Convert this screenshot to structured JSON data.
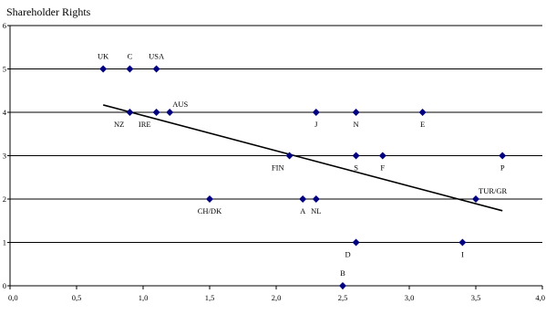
{
  "chart_data": {
    "type": "scatter",
    "title": "Shareholder Rights",
    "xlabel": "",
    "ylabel": "",
    "xlim": [
      0.0,
      4.0
    ],
    "ylim": [
      0,
      6
    ],
    "x_ticks": [
      0.0,
      0.5,
      1.0,
      1.5,
      2.0,
      2.5,
      3.0,
      3.5,
      4.0
    ],
    "x_tick_labels": [
      "0,0",
      "0,5",
      "1,0",
      "1,5",
      "2,0",
      "2,5",
      "3,0",
      "3,5",
      "4,0"
    ],
    "y_ticks": [
      0,
      1,
      2,
      3,
      4,
      5,
      6
    ],
    "y_tick_labels": [
      "0",
      "1",
      "2",
      "3",
      "4",
      "5",
      "6"
    ],
    "grid": "horizontal",
    "legend": "none",
    "marker_color": "#000080",
    "line_color": "#000000",
    "points": [
      {
        "label": "UK",
        "x": 0.7,
        "y": 5,
        "label_pos": "above"
      },
      {
        "label": "C",
        "x": 0.9,
        "y": 5,
        "label_pos": "above"
      },
      {
        "label": "USA",
        "x": 1.1,
        "y": 5,
        "label_pos": "above"
      },
      {
        "label": "NZ",
        "x": 0.9,
        "y": 4,
        "label_pos": "below-left"
      },
      {
        "label": "IRE",
        "x": 1.1,
        "y": 4,
        "label_pos": "below-left"
      },
      {
        "label": "AUS",
        "x": 1.2,
        "y": 4,
        "label_pos": "above-right"
      },
      {
        "label": "J",
        "x": 2.3,
        "y": 4,
        "label_pos": "below"
      },
      {
        "label": "N",
        "x": 2.6,
        "y": 4,
        "label_pos": "below"
      },
      {
        "label": "E",
        "x": 3.1,
        "y": 4,
        "label_pos": "below"
      },
      {
        "label": "FIN",
        "x": 2.1,
        "y": 3,
        "label_pos": "below-left"
      },
      {
        "label": "S",
        "x": 2.6,
        "y": 3,
        "label_pos": "below"
      },
      {
        "label": "F",
        "x": 2.8,
        "y": 3,
        "label_pos": "below"
      },
      {
        "label": "P",
        "x": 3.7,
        "y": 3,
        "label_pos": "below"
      },
      {
        "label": "CH/DK",
        "x": 1.5,
        "y": 2,
        "label_pos": "below"
      },
      {
        "label": "A",
        "x": 2.2,
        "y": 2,
        "label_pos": "below"
      },
      {
        "label": "NL",
        "x": 2.3,
        "y": 2,
        "label_pos": "below"
      },
      {
        "label": "TUR/GR",
        "x": 3.5,
        "y": 2,
        "label_pos": "above-right"
      },
      {
        "label": "D",
        "x": 2.6,
        "y": 1,
        "label_pos": "below-left"
      },
      {
        "label": "I",
        "x": 3.4,
        "y": 1,
        "label_pos": "below"
      },
      {
        "label": "B",
        "x": 2.5,
        "y": 0,
        "label_pos": "above"
      }
    ],
    "trendline": {
      "x": [
        0.7,
        3.7
      ],
      "y": [
        4.17,
        1.73
      ]
    }
  }
}
